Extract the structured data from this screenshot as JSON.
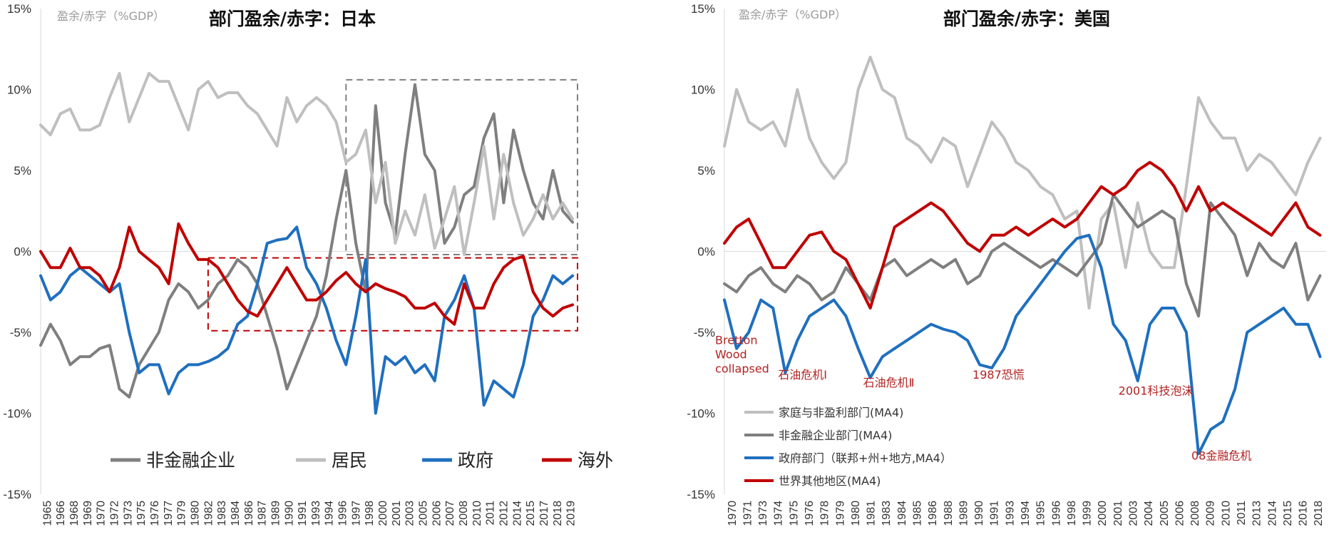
{
  "chart_data": [
    {
      "type": "line",
      "title": "部门盈余/赤字：日本",
      "ylabel": "盈余/赤字（%GDP）",
      "ylim": [
        -15,
        15
      ],
      "yticks": [
        15,
        10,
        5,
        0,
        -5,
        -10,
        -15
      ],
      "ytick_labels": [
        "15%",
        "10%",
        "5%",
        "0%",
        "-5%",
        "-10%",
        "-15%"
      ],
      "x_start": 1965,
      "x_end": 2019.5,
      "x_tick_labels": [
        "1965",
        "1966",
        "1968",
        "1969",
        "1970",
        "1972",
        "1973",
        "1975",
        "1976",
        "1977",
        "1979",
        "1980",
        "1982",
        "1983",
        "1984",
        "1986",
        "1987",
        "1989",
        "1990",
        "1991",
        "1993",
        "1994",
        "1996",
        "1997",
        "1998",
        "2000",
        "2001",
        "2003",
        "2005",
        "2006",
        "2007",
        "2008",
        "2010",
        "2011",
        "2012",
        "2014",
        "2015",
        "2017",
        "2018",
        "2019"
      ],
      "legend": [
        "非金融企业",
        "居民",
        "政府",
        "海外"
      ],
      "legend_position": "bottom",
      "highlight_boxes": [
        {
          "color": "#7f7f7f",
          "x": [
            1996,
            2019.5
          ],
          "y": [
            -0.2,
            10.6
          ]
        },
        {
          "color": "#c00000",
          "x": [
            1982,
            2019.5
          ],
          "y": [
            -4.9,
            -0.4
          ]
        }
      ],
      "series": [
        {
          "name": "非金融企业",
          "color": "#7f7f7f",
          "x": [
            1965,
            1966,
            1967,
            1968,
            1969,
            1970,
            1971,
            1972,
            1973,
            1974,
            1975,
            1976,
            1977,
            1978,
            1979,
            1980,
            1981,
            1982,
            1983,
            1984,
            1985,
            1986,
            1987,
            1988,
            1989,
            1990,
            1991,
            1992,
            1993,
            1994,
            1995,
            1996,
            1997,
            1998,
            1999,
            2000,
            2001,
            2002,
            2003,
            2004,
            2005,
            2006,
            2007,
            2008,
            2009,
            2010,
            2011,
            2012,
            2013,
            2014,
            2015,
            2016,
            2017,
            2018,
            2019
          ],
          "values": [
            -5.8,
            -4.5,
            -5.5,
            -7,
            -6.5,
            -6.5,
            -6,
            -5.8,
            -8.5,
            -9,
            -7,
            -6,
            -5,
            -3,
            -2,
            -2.5,
            -3.5,
            -3,
            -2,
            -1.5,
            -0.5,
            -1,
            -2,
            -4,
            -6,
            -8.5,
            -7,
            -5.5,
            -4,
            -1.5,
            2,
            5,
            0.5,
            -2.5,
            9,
            3,
            1,
            6,
            10.3,
            6,
            5,
            0.5,
            1.5,
            3.5,
            4,
            7,
            8.5,
            3,
            7.5,
            5,
            3,
            2,
            5,
            2.5,
            1.8
          ]
        },
        {
          "name": "居民",
          "color": "#bfbfbf",
          "x": [
            1965,
            1966,
            1967,
            1968,
            1969,
            1970,
            1971,
            1972,
            1973,
            1974,
            1975,
            1976,
            1977,
            1978,
            1979,
            1980,
            1981,
            1982,
            1983,
            1984,
            1985,
            1986,
            1987,
            1988,
            1989,
            1990,
            1991,
            1992,
            1993,
            1994,
            1995,
            1996,
            1997,
            1998,
            1999,
            2000,
            2001,
            2002,
            2003,
            2004,
            2005,
            2006,
            2007,
            2008,
            2009,
            2010,
            2011,
            2012,
            2013,
            2014,
            2015,
            2016,
            2017,
            2018,
            2019
          ],
          "values": [
            7.8,
            7.2,
            8.5,
            8.8,
            7.5,
            7.5,
            7.8,
            9.5,
            11,
            8,
            9.5,
            11,
            10.5,
            10.5,
            9,
            7.5,
            10,
            10.5,
            9.5,
            9.8,
            9.8,
            9,
            8.5,
            7.5,
            6.5,
            9.5,
            8,
            9,
            9.5,
            9,
            8,
            5.5,
            6,
            7.5,
            3,
            5.5,
            0.5,
            2.5,
            1,
            3.5,
            0.2,
            2,
            4,
            -0.2,
            3,
            6.5,
            2,
            6,
            3,
            1,
            2,
            3.5,
            2,
            3,
            2
          ]
        },
        {
          "name": "政府",
          "color": "#1f6fbf",
          "x": [
            1965,
            1966,
            1967,
            1968,
            1969,
            1970,
            1971,
            1972,
            1973,
            1974,
            1975,
            1976,
            1977,
            1978,
            1979,
            1980,
            1981,
            1982,
            1983,
            1984,
            1985,
            1986,
            1987,
            1988,
            1989,
            1990,
            1991,
            1992,
            1993,
            1994,
            1995,
            1996,
            1997,
            1998,
            1999,
            2000,
            2001,
            2002,
            2003,
            2004,
            2005,
            2006,
            2007,
            2008,
            2009,
            2010,
            2011,
            2012,
            2013,
            2014,
            2015,
            2016,
            2017,
            2018,
            2019
          ],
          "values": [
            -1.5,
            -3,
            -2.5,
            -1.5,
            -1,
            -1.5,
            -2,
            -2.5,
            -2,
            -5,
            -7.5,
            -7,
            -7,
            -8.8,
            -7.5,
            -7,
            -7,
            -6.8,
            -6.5,
            -6,
            -4.5,
            -4,
            -2,
            0.5,
            0.7,
            0.8,
            1.5,
            -1,
            -2,
            -3.5,
            -5.5,
            -7,
            -4,
            -0.5,
            -10,
            -6.5,
            -7,
            -6.5,
            -7.5,
            -7,
            -8,
            -4,
            -3,
            -1.5,
            -3.5,
            -9.5,
            -8,
            -8.5,
            -9,
            -7,
            -4,
            -3,
            -1.5,
            -2,
            -1.5
          ]
        },
        {
          "name": "海外",
          "color": "#c00000",
          "x": [
            1965,
            1966,
            1967,
            1968,
            1969,
            1970,
            1971,
            1972,
            1973,
            1974,
            1975,
            1976,
            1977,
            1978,
            1979,
            1980,
            1981,
            1982,
            1983,
            1984,
            1985,
            1986,
            1987,
            1988,
            1989,
            1990,
            1991,
            1992,
            1993,
            1994,
            1995,
            1996,
            1997,
            1998,
            1999,
            2000,
            2001,
            2002,
            2003,
            2004,
            2005,
            2006,
            2007,
            2008,
            2009,
            2010,
            2011,
            2012,
            2013,
            2014,
            2015,
            2016,
            2017,
            2018,
            2019
          ],
          "values": [
            0,
            -1,
            -1,
            0.2,
            -1,
            -1,
            -1.5,
            -2.5,
            -1,
            1.5,
            0,
            -0.5,
            -1,
            -2,
            1.7,
            0.5,
            -0.5,
            -0.5,
            -1,
            -2,
            -3,
            -3.7,
            -4,
            -3,
            -2,
            -1,
            -2,
            -3,
            -3,
            -2.5,
            -1.8,
            -1.3,
            -2,
            -2.5,
            -2,
            -2.3,
            -2.5,
            -2.8,
            -3.5,
            -3.5,
            -3.2,
            -4,
            -4.5,
            -2,
            -3.5,
            -3.5,
            -2,
            -1,
            -0.5,
            -0.3,
            -2.5,
            -3.5,
            -4,
            -3.5,
            -3.3
          ]
        }
      ]
    },
    {
      "type": "line",
      "title": "部门盈余/赤字：美国",
      "ylabel": "盈余/赤字（%GDP）",
      "ylim": [
        -15,
        15
      ],
      "yticks": [
        15,
        10,
        5,
        0,
        -5,
        -10,
        -15
      ],
      "ytick_labels": [
        "15%",
        "10%",
        "5%",
        "0%",
        "-5%",
        "-10%",
        "-15%"
      ],
      "x_start": 1970,
      "x_end": 2019.5,
      "x_tick_labels": [
        "1970",
        "1971",
        "1973",
        "1974",
        "1975",
        "1976",
        "1978",
        "1979",
        "1980",
        "1981",
        "1983",
        "1984",
        "1985",
        "1986",
        "1988",
        "1989",
        "1990",
        "1991",
        "1993",
        "1994",
        "1995",
        "1996",
        "1998",
        "1999",
        "2000",
        "2001",
        "2003",
        "2004",
        "2005",
        "2006",
        "2008",
        "2009",
        "2010",
        "2011",
        "2013",
        "2014",
        "2015",
        "2016",
        "2018"
      ],
      "legend": [
        "家庭与非盈利部门(MA4)",
        "非金融企业部门(MA4)",
        "政府部门（联邦+州+地方,MA4）",
        "世界其他地区(MA4)"
      ],
      "legend_position": "bottom-left",
      "annotations": [
        {
          "text": "Bretton Wood collapsed",
          "lines": [
            "Bretton",
            "Wood",
            "collapsed"
          ],
          "x": 1971,
          "y": -6
        },
        {
          "text": "石油危机Ⅰ",
          "x": 1975,
          "y": -7.5
        },
        {
          "text": "石油危机Ⅱ",
          "x": 1982,
          "y": -8
        },
        {
          "text": "1987恐慌",
          "x": 1991,
          "y": -7.5
        },
        {
          "text": "2001科技泡沫",
          "x": 2003,
          "y": -8.5
        },
        {
          "text": "08金融危机",
          "x": 2009,
          "y": -12.5
        }
      ],
      "series": [
        {
          "name": "家庭与非盈利部门(MA4)",
          "color": "#bfbfbf",
          "x": [
            1970,
            1971,
            1972,
            1973,
            1974,
            1975,
            1976,
            1977,
            1978,
            1979,
            1980,
            1981,
            1982,
            1983,
            1984,
            1985,
            1986,
            1987,
            1988,
            1989,
            1990,
            1991,
            1992,
            1993,
            1994,
            1995,
            1996,
            1997,
            1998,
            1999,
            2000,
            2001,
            2002,
            2003,
            2004,
            2005,
            2006,
            2007,
            2008,
            2009,
            2010,
            2011,
            2012,
            2013,
            2014,
            2015,
            2016,
            2017,
            2018,
            2019
          ],
          "values": [
            6.5,
            10,
            8,
            7.5,
            8,
            6.5,
            10,
            7,
            5.5,
            4.5,
            5.5,
            10,
            12,
            10,
            9.5,
            7,
            6.5,
            5.5,
            7,
            6.5,
            4,
            6,
            8,
            7,
            5.5,
            5,
            4,
            3.5,
            2,
            2.5,
            -3.5,
            2,
            3,
            -1,
            3,
            0,
            -1,
            -1,
            4,
            9.5,
            8,
            7,
            7,
            5,
            6,
            5.5,
            4.5,
            3.5,
            5.5,
            7
          ]
        },
        {
          "name": "非金融企业部门(MA4)",
          "color": "#7f7f7f",
          "x": [
            1970,
            1971,
            1972,
            1973,
            1974,
            1975,
            1976,
            1977,
            1978,
            1979,
            1980,
            1981,
            1982,
            1983,
            1984,
            1985,
            1986,
            1987,
            1988,
            1989,
            1990,
            1991,
            1992,
            1993,
            1994,
            1995,
            1996,
            1997,
            1998,
            1999,
            2000,
            2001,
            2002,
            2003,
            2004,
            2005,
            2006,
            2007,
            2008,
            2009,
            2010,
            2011,
            2012,
            2013,
            2014,
            2015,
            2016,
            2017,
            2018,
            2019
          ],
          "values": [
            -2,
            -2.5,
            -1.5,
            -1,
            -2,
            -2.5,
            -1.5,
            -2,
            -3,
            -2.5,
            -1,
            -2,
            -3,
            -1,
            -0.5,
            -1.5,
            -1,
            -0.5,
            -1,
            -0.5,
            -2,
            -1.5,
            0,
            0.5,
            0,
            -0.5,
            -1,
            -0.5,
            -1,
            -1.5,
            -0.5,
            0.5,
            3.5,
            2.5,
            1.5,
            2,
            2.5,
            2,
            -2,
            -4,
            3,
            2,
            1,
            -1.5,
            0.5,
            -0.5,
            -1,
            0.5,
            -3,
            -1.5
          ]
        },
        {
          "name": "政府部门（联邦+州+地方,MA4）",
          "color": "#1f6fbf",
          "x": [
            1970,
            1971,
            1972,
            1973,
            1974,
            1975,
            1976,
            1977,
            1978,
            1979,
            1980,
            1981,
            1982,
            1983,
            1984,
            1985,
            1986,
            1987,
            1988,
            1989,
            1990,
            1991,
            1992,
            1993,
            1994,
            1995,
            1996,
            1997,
            1998,
            1999,
            2000,
            2001,
            2002,
            2003,
            2004,
            2005,
            2006,
            2007,
            2008,
            2009,
            2010,
            2011,
            2012,
            2013,
            2014,
            2015,
            2016,
            2017,
            2018,
            2019
          ],
          "values": [
            -3,
            -6,
            -5,
            -3,
            -3.5,
            -7.5,
            -5.5,
            -4,
            -3.5,
            -3,
            -4,
            -6,
            -7.8,
            -6.5,
            -6,
            -5.5,
            -5,
            -4.5,
            -4.8,
            -5,
            -5.5,
            -7,
            -7.2,
            -6,
            -4,
            -3,
            -2,
            -1,
            0,
            0.8,
            1,
            -1,
            -4.5,
            -5.5,
            -8,
            -4.5,
            -3.5,
            -3.5,
            -5,
            -12.5,
            -11,
            -10.5,
            -8.5,
            -5,
            -4.5,
            -4,
            -3.5,
            -4.5,
            -4.5,
            -6.5
          ]
        },
        {
          "name": "世界其他地区(MA4)",
          "color": "#c00000",
          "x": [
            1970,
            1971,
            1972,
            1973,
            1974,
            1975,
            1976,
            1977,
            1978,
            1979,
            1980,
            1981,
            1982,
            1983,
            1984,
            1985,
            1986,
            1987,
            1988,
            1989,
            1990,
            1991,
            1992,
            1993,
            1994,
            1995,
            1996,
            1997,
            1998,
            1999,
            2000,
            2001,
            2002,
            2003,
            2004,
            2005,
            2006,
            2007,
            2008,
            2009,
            2010,
            2011,
            2012,
            2013,
            2014,
            2015,
            2016,
            2017,
            2018,
            2019
          ],
          "values": [
            0.5,
            1.5,
            2,
            0.5,
            -1,
            -1,
            0,
            1,
            1.2,
            0,
            -0.5,
            -2,
            -3.5,
            -1,
            1.5,
            2,
            2.5,
            3,
            2.5,
            1.5,
            0.5,
            0,
            1,
            1,
            1.5,
            1,
            1.5,
            2,
            1.5,
            2,
            3,
            4,
            3.5,
            4,
            5,
            5.5,
            5,
            4,
            2.5,
            4,
            2.5,
            3,
            2.5,
            2,
            1.5,
            1,
            2,
            3,
            1.5,
            1
          ]
        }
      ]
    }
  ]
}
